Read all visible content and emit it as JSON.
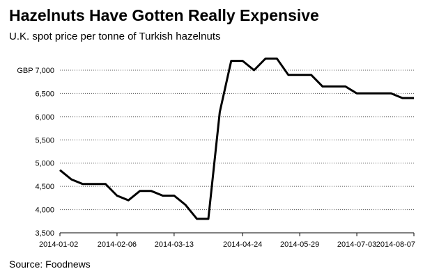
{
  "chart_data": {
    "type": "line",
    "title": "Hazelnuts Have Gotten Really Expensive",
    "subtitle": "U.K. spot price per tonne of Turkish hazelnuts",
    "source": "Source: Foodnews",
    "xlabel": "",
    "ylabel": "",
    "y_axis_unit_prefix": "GBP",
    "ylim": [
      3500,
      7000
    ],
    "y_ticks": [
      3500,
      4000,
      4500,
      5000,
      5500,
      6000,
      6500,
      7000
    ],
    "y_tick_labels": [
      "3,500",
      "4,000",
      "4,500",
      "5,000",
      "5,500",
      "6,000",
      "6,500",
      "GBP 7,000"
    ],
    "x_tick_labels": [
      "2014-01-02",
      "2014-02-06",
      "2014-03-13",
      "2014-04-24",
      "2014-05-29",
      "2014-07-03",
      "2014-08-07"
    ],
    "x_tick_index": [
      0,
      5,
      10,
      16,
      21,
      26,
      31
    ],
    "series": [
      {
        "name": "U.K. spot price per tonne of Turkish hazelnuts",
        "color": "#000000",
        "values": [
          4850,
          4650,
          4550,
          4550,
          4550,
          4300,
          4200,
          4400,
          4400,
          4300,
          4300,
          4100,
          3800,
          3800,
          6100,
          7200,
          7200,
          7000,
          7250,
          7250,
          6900,
          6900,
          6900,
          6650,
          6650,
          6650,
          6500,
          6500,
          6500,
          6500,
          6400,
          6400
        ]
      }
    ]
  }
}
